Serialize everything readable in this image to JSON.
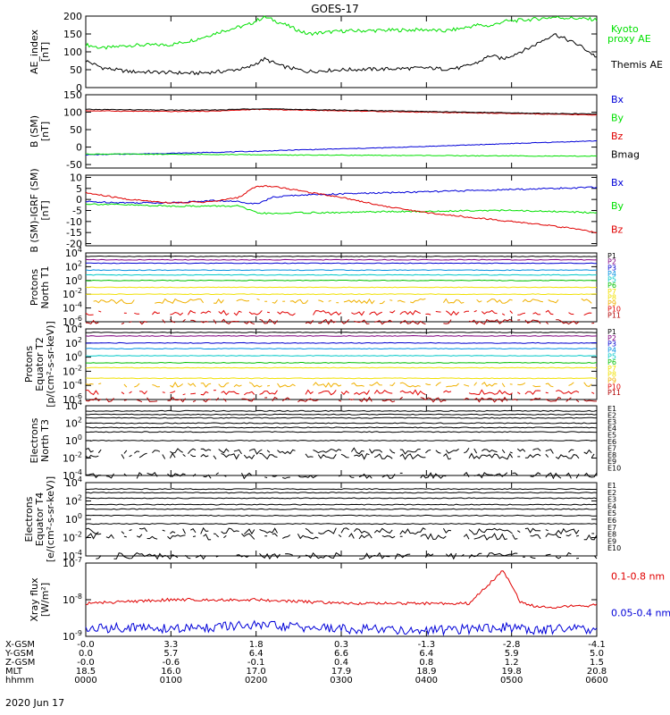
{
  "title": "GOES-17",
  "date": "2020 Jun 17",
  "colors": {
    "black": "#000000",
    "green": "#00e000",
    "red": "#e00000",
    "blue": "#0000d8",
    "P1": "#000000",
    "P2": "#800080",
    "P3": "#0000d0",
    "P4": "#0090e0",
    "P5": "#00c8c8",
    "P6": "#00c000",
    "P7": "#f0e000",
    "P8": "#f0e000",
    "P9": "#f0b000",
    "P10": "#e00000",
    "P11": "#b00000"
  },
  "time_ticks": [
    "0000",
    "0100",
    "0200",
    "0300",
    "0400",
    "0500",
    "0600"
  ],
  "footer_rows": [
    {
      "label": "X-GSM",
      "values": [
        "-0.0",
        "3.3",
        "1.8",
        "0.3",
        "-1.3",
        "-2.8",
        "-4.1"
      ]
    },
    {
      "label": "Y-GSM",
      "values": [
        "0.0",
        "5.7",
        "6.4",
        "6.6",
        "6.4",
        "5.9",
        "5.0"
      ]
    },
    {
      "label": "Z-GSM",
      "values": [
        "-0.0",
        "-0.6",
        "-0.1",
        "0.4",
        "0.8",
        "1.2",
        "1.5"
      ]
    },
    {
      "label": "MLT",
      "values": [
        "18.5",
        "16.0",
        "17.0",
        "17.9",
        "18.9",
        "19.8",
        "20.8"
      ]
    },
    {
      "label": "hhmm",
      "values": [
        "0000",
        "0100",
        "0200",
        "0300",
        "0400",
        "0500",
        "0600"
      ]
    }
  ],
  "chart_data": [
    {
      "type": "line",
      "id": "ae",
      "ylabel": [
        "AE_index",
        "[nT]"
      ],
      "ylim": [
        0,
        200
      ],
      "yticks": [
        "0",
        "50",
        "100",
        "150",
        "200"
      ],
      "x": [
        0,
        0.2,
        0.5,
        1,
        1.3,
        1.6,
        1.9,
        2.1,
        2.3,
        2.6,
        3,
        3.5,
        4,
        4.2,
        4.4,
        4.6,
        4.75,
        4.9,
        5.2,
        5.5,
        5.8,
        6
      ],
      "series": [
        {
          "name": "Kyoto",
          "name2": "proxy AE",
          "color": "green",
          "values": [
            120,
            110,
            118,
            120,
            135,
            158,
            175,
            198,
            180,
            150,
            158,
            160,
            162,
            158,
            165,
            175,
            172,
            185,
            190,
            197,
            193,
            190
          ]
        },
        {
          "name": "Themis AE",
          "color": "black",
          "values": [
            75,
            55,
            45,
            42,
            40,
            45,
            55,
            80,
            60,
            45,
            50,
            52,
            55,
            52,
            55,
            70,
            90,
            80,
            110,
            150,
            118,
            85
          ]
        }
      ]
    },
    {
      "type": "line",
      "id": "bsm",
      "ylabel": [
        "B (SM)",
        "[nT]"
      ],
      "ylim": [
        -60,
        150
      ],
      "yticks": [
        "-50",
        "0",
        "50",
        "100",
        "150"
      ],
      "x": [
        0,
        0.5,
        1,
        1.5,
        2,
        2.5,
        3,
        3.5,
        4,
        4.5,
        5,
        5.5,
        6
      ],
      "series": [
        {
          "name": "Bx",
          "color": "blue",
          "values": [
            -22,
            -20,
            -18,
            -15,
            -12,
            -8,
            -5,
            -2,
            2,
            6,
            10,
            14,
            18
          ]
        },
        {
          "name": "By",
          "color": "green",
          "values": [
            -20,
            -20,
            -21,
            -21,
            -22,
            -23,
            -23,
            -24,
            -24,
            -25,
            -25,
            -26,
            -26
          ]
        },
        {
          "name": "Bz",
          "color": "red",
          "values": [
            104,
            103,
            102,
            103,
            108,
            106,
            104,
            102,
            100,
            98,
            96,
            94,
            92
          ]
        },
        {
          "name": "Bmag",
          "color": "black",
          "values": [
            108,
            107,
            106,
            106,
            110,
            108,
            106,
            104,
            102,
            100,
            98,
            96,
            95
          ]
        }
      ]
    },
    {
      "type": "line",
      "id": "bigrf",
      "ylabel": [
        "B (SM)-IGRF (SM)",
        "[nT]"
      ],
      "ylim": [
        -21,
        11
      ],
      "yticks": [
        "-20",
        "-15",
        "-10",
        "-5",
        "0",
        "5",
        "10"
      ],
      "x": [
        0,
        0.5,
        1,
        1.5,
        1.8,
        2,
        2.2,
        2.5,
        3,
        3.5,
        4,
        4.5,
        5,
        5.5,
        6
      ],
      "series": [
        {
          "name": "Bx",
          "color": "blue",
          "values": [
            -1,
            -1.5,
            -1.5,
            -0.5,
            -1,
            -2,
            1,
            2,
            2.5,
            3,
            3.5,
            4,
            4.5,
            5,
            5.5
          ]
        },
        {
          "name": "By",
          "color": "green",
          "values": [
            -2,
            -2.5,
            -3,
            -3,
            -3,
            -6,
            -6.5,
            -6,
            -6,
            -5.5,
            -5.5,
            -5,
            -5,
            -5.5,
            -6
          ]
        },
        {
          "name": "Bz",
          "color": "red",
          "values": [
            3,
            0,
            -1.5,
            -1,
            1,
            6,
            6,
            4,
            1,
            -3,
            -6,
            -8,
            -10,
            -12,
            -15
          ]
        }
      ]
    },
    {
      "type": "line",
      "id": "pt1",
      "ylabel": [
        "Protons",
        "North T1"
      ],
      "ylog": true,
      "ylim": [
        -6,
        4
      ],
      "yticks_exp": [
        -6,
        -4,
        -2,
        0,
        2,
        4
      ],
      "legend": [
        "P1",
        "P2",
        "P3",
        "P4",
        "P5",
        "P6",
        "P7",
        "P8",
        "P9",
        "P10",
        "P11"
      ],
      "levels": [
        3.5,
        3.0,
        2.5,
        1.5,
        0.8,
        0.0,
        -1.0,
        -2.0,
        -3.0,
        -4.7,
        -6.0
      ]
    },
    {
      "type": "line",
      "id": "pt2",
      "ylabel": [
        "Protons",
        "Equator T2",
        "[p/(cm²-s-sr-keV)]"
      ],
      "ylog": true,
      "ylim": [
        -6,
        4
      ],
      "yticks_exp": [
        -6,
        -4,
        -2,
        0,
        2,
        4
      ],
      "legend": [
        "P1",
        "P2",
        "P3",
        "P4",
        "P5",
        "P6",
        "P7",
        "P8",
        "P9",
        "P10",
        "P11"
      ],
      "levels": [
        3.5,
        3.0,
        2.0,
        1.2,
        0.2,
        -0.8,
        -1.5,
        -3.0,
        -3.9,
        -5.0,
        -6.0
      ]
    },
    {
      "type": "line",
      "id": "et3",
      "ylabel": [
        "Electrons",
        "North T3"
      ],
      "ylog": true,
      "ylim": [
        -4,
        4
      ],
      "yticks_exp": [
        -4,
        -2,
        0,
        2,
        4
      ],
      "legend": [
        "E1",
        "E2",
        "E3",
        "E4",
        "E5",
        "E6",
        "E7",
        "E8",
        "E9",
        "E10"
      ],
      "levels": [
        3.4,
        3.0,
        2.6,
        2.0,
        1.5,
        1.0,
        0.0,
        -1.2,
        -1.8,
        -4.0
      ]
    },
    {
      "type": "line",
      "id": "et4",
      "ylabel": [
        "Electrons",
        "Equator T4",
        "[e/(cm²-s-sr-keV)]"
      ],
      "ylog": true,
      "ylim": [
        -4,
        4
      ],
      "yticks_exp": [
        -4,
        -2,
        0,
        2,
        4
      ],
      "legend": [
        "E1",
        "E2",
        "E3",
        "E4",
        "E5",
        "E6",
        "E7",
        "E8",
        "E9",
        "E10"
      ],
      "levels": [
        3.3,
        2.9,
        2.3,
        1.6,
        1.1,
        0.4,
        -0.5,
        -1.3,
        -1.9,
        -4.0
      ]
    },
    {
      "type": "line",
      "id": "xray",
      "ylabel": [
        "Xray flux",
        "[W/m²]"
      ],
      "ylog": true,
      "ylim": [
        -9,
        -7
      ],
      "yticks_exp": [
        -9,
        -8,
        -7
      ],
      "x": [
        0,
        0.5,
        1,
        1.5,
        2,
        2.5,
        3,
        3.5,
        4,
        4.5,
        4.9,
        5.1,
        5.3,
        5.5,
        6
      ],
      "series": [
        {
          "name": "0.1-0.8 nm",
          "color": "red",
          "values": [
            -8.1,
            -8.05,
            -8.0,
            -8.0,
            -8.0,
            -8.05,
            -8.1,
            -8.1,
            -8.1,
            -8.1,
            -7.2,
            -8.05,
            -8.2,
            -8.2,
            -8.15
          ]
        },
        {
          "name": "0.05-0.4 nm",
          "color": "blue",
          "values": [
            -8.8,
            -8.75,
            -8.8,
            -8.75,
            -8.7,
            -8.75,
            -8.8,
            -8.8,
            -8.85,
            -8.8,
            -8.75,
            -8.8,
            -8.85,
            -8.8,
            -8.8
          ]
        }
      ]
    }
  ]
}
